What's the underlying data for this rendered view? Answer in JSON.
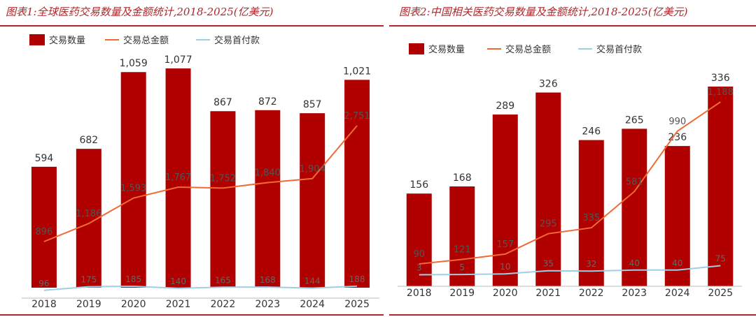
{
  "panels": [
    {
      "title": "图表1:全球医药交易数量及金额统计,2018-2025(亿美元)",
      "legend": {
        "count": "交易数量",
        "total": "交易总金额",
        "upfront": "交易首付款"
      },
      "colors": {
        "bar": "#b00000",
        "total": "#ef6a35",
        "upfront": "#9ecfe4"
      }
    },
    {
      "title": "图表2:中国相关医药交易数量及金额统计,2018-2025(亿美元)",
      "legend": {
        "count": "交易数量",
        "total": "交易总金额",
        "upfront": "交易首付款"
      },
      "colors": {
        "bar": "#b00000",
        "total": "#ef6a35",
        "upfront": "#9ecfe4"
      }
    }
  ],
  "chart_data": [
    {
      "type": "bar",
      "title": "图表1:全球医药交易数量及金额统计,2018-2025(亿美元)",
      "categories": [
        "2018",
        "2019",
        "2020",
        "2021",
        "2022",
        "2023",
        "2024",
        "2025"
      ],
      "series": [
        {
          "name": "交易数量",
          "type": "bar",
          "values": [
            594,
            682,
            1059,
            1077,
            867,
            872,
            857,
            1021
          ]
        },
        {
          "name": "交易总金额",
          "type": "line",
          "values": [
            896,
            1186,
            1593,
            1767,
            1752,
            1840,
            1904,
            2751
          ]
        },
        {
          "name": "交易首付款",
          "type": "line",
          "values": [
            96,
            175,
            185,
            140,
            165,
            168,
            144,
            188
          ]
        }
      ],
      "bar_labels": [
        "594",
        "682",
        "1,059",
        "1,077",
        "867",
        "872",
        "857",
        "1,021"
      ],
      "total_labels": [
        "896",
        "1,186",
        "1,593",
        "1,767",
        "1,752",
        "1,840",
        "1,904",
        "2,751"
      ],
      "upfront_labels": [
        "96",
        "175",
        "185",
        "140",
        "165",
        "168",
        "144",
        "188"
      ],
      "legend_position": "top-left"
    },
    {
      "type": "bar",
      "title": "图表2:中国相关医药交易数量及金额统计,2018-2025(亿美元)",
      "categories": [
        "2018",
        "2019",
        "2020",
        "2021",
        "2022",
        "2023",
        "2024",
        "2025"
      ],
      "series": [
        {
          "name": "交易数量",
          "type": "bar",
          "values": [
            156,
            168,
            289,
            326,
            246,
            265,
            236,
            336
          ]
        },
        {
          "name": "交易总金额",
          "type": "line",
          "values": [
            90,
            121,
            157,
            295,
            335,
            581,
            990,
            1188
          ]
        },
        {
          "name": "交易首付款",
          "type": "line",
          "values": [
            3,
            5,
            10,
            35,
            32,
            40,
            40,
            75
          ]
        }
      ],
      "bar_labels": [
        "156",
        "168",
        "289",
        "326",
        "246",
        "265",
        "236",
        "336"
      ],
      "total_labels": [
        "90",
        "121",
        "157",
        "295",
        "335",
        "581",
        "990",
        "1,188"
      ],
      "upfront_labels": [
        "3",
        "5",
        "10",
        "35",
        "32",
        "40",
        "40",
        "75"
      ],
      "legend_position": "top-left"
    }
  ]
}
